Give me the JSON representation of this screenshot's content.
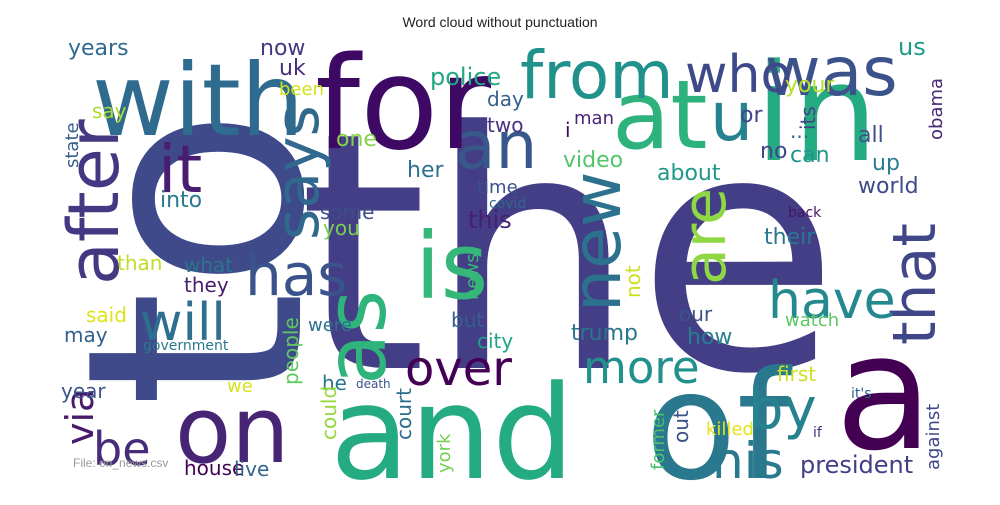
{
  "chart_data": {
    "type": "wordcloud",
    "title": "Word cloud without punctuation",
    "words": [
      {
        "text": "the",
        "color": "#433e85"
      },
      {
        "text": "to",
        "color": "#3e4a89"
      },
      {
        "text": "in",
        "color": "#25ab82"
      },
      {
        "text": "of",
        "color": "#2a788e"
      },
      {
        "text": "a",
        "color": "#440154"
      },
      {
        "text": "and",
        "color": "#25ab82"
      },
      {
        "text": "for",
        "color": "#3d0965"
      },
      {
        "text": "with",
        "color": "#2f6b8e"
      },
      {
        "text": "on",
        "color": "#482475"
      },
      {
        "text": "at",
        "color": "#2db27d"
      },
      {
        "text": "is",
        "color": "#35b779"
      },
      {
        "text": "from",
        "color": "#21918c"
      },
      {
        "text": "was",
        "color": "#3b528b"
      },
      {
        "text": "as",
        "color": "#2fb47c"
      },
      {
        "text": "u",
        "color": "#26828e"
      },
      {
        "text": "who",
        "color": "#3e4989"
      },
      {
        "text": "new",
        "color": "#2c728e"
      },
      {
        "text": "after",
        "color": "#453781"
      },
      {
        "text": "says",
        "color": "#31688e"
      },
      {
        "text": "it",
        "color": "#481f70"
      },
      {
        "text": "an",
        "color": "#38588c"
      },
      {
        "text": "has",
        "color": "#3a538b"
      },
      {
        "text": "are",
        "color": "#8fd744"
      },
      {
        "text": "that",
        "color": "#3f4788"
      },
      {
        "text": "have",
        "color": "#23898e"
      },
      {
        "text": "by",
        "color": "#26828e"
      },
      {
        "text": "will",
        "color": "#2e6e8e"
      },
      {
        "text": "over",
        "color": "#440154"
      },
      {
        "text": "his",
        "color": "#2a788e"
      },
      {
        "text": "more",
        "color": "#21918c"
      },
      {
        "text": "be",
        "color": "#472c7a"
      },
      {
        "text": "via",
        "color": "#481a6c"
      },
      {
        "text": "president",
        "color": "#433e85"
      },
      {
        "text": "police",
        "color": "#22a785"
      },
      {
        "text": "us",
        "color": "#1e9b8a"
      },
      {
        "text": "obama",
        "color": "#482878"
      },
      {
        "text": "your",
        "color": "#b8de29"
      },
      {
        "text": "all",
        "color": "#3b528b"
      },
      {
        "text": "or",
        "color": "#404688"
      },
      {
        "text": "its",
        "color": "#414487"
      },
      {
        "text": "...",
        "color": "#31688e"
      },
      {
        "text": "can",
        "color": "#1f958b"
      },
      {
        "text": "up",
        "color": "#287d8e"
      },
      {
        "text": "world",
        "color": "#3e4a89"
      },
      {
        "text": "their",
        "color": "#2a778e"
      },
      {
        "text": "back",
        "color": "#481467"
      },
      {
        "text": "years",
        "color": "#306a8e"
      },
      {
        "text": "now",
        "color": "#453882"
      },
      {
        "text": "uk",
        "color": "#472d7b"
      },
      {
        "text": "been",
        "color": "#d2e21b"
      },
      {
        "text": "say",
        "color": "#aadc32"
      },
      {
        "text": "state",
        "color": "#365d8d"
      },
      {
        "text": "one",
        "color": "#84d44b"
      },
      {
        "text": "day",
        "color": "#355f8d"
      },
      {
        "text": "two",
        "color": "#46327e"
      },
      {
        "text": "man",
        "color": "#482677"
      },
      {
        "text": "i",
        "color": "#450559"
      },
      {
        "text": "no",
        "color": "#3f4889"
      },
      {
        "text": "her",
        "color": "#2d718e"
      },
      {
        "text": "video",
        "color": "#51c56a"
      },
      {
        "text": "about",
        "color": "#1f988b"
      },
      {
        "text": "time",
        "color": "#3b518b"
      },
      {
        "text": "covid",
        "color": "#31678e"
      },
      {
        "text": "into",
        "color": "#297a8e"
      },
      {
        "text": "this",
        "color": "#482071"
      },
      {
        "text": "some",
        "color": "#3d4d8a"
      },
      {
        "text": "you",
        "color": "#75d054"
      },
      {
        "text": "than",
        "color": "#bddf26"
      },
      {
        "text": "what",
        "color": "#2b748e"
      },
      {
        "text": "they",
        "color": "#481c6e"
      },
      {
        "text": "news",
        "color": "#38b977"
      },
      {
        "text": "not",
        "color": "#cae11f"
      },
      {
        "text": "said",
        "color": "#dde318"
      },
      {
        "text": "may",
        "color": "#34608d"
      },
      {
        "text": "government",
        "color": "#2a788e"
      },
      {
        "text": "people",
        "color": "#5ec962"
      },
      {
        "text": "were",
        "color": "#2c728e"
      },
      {
        "text": "but",
        "color": "#34608d"
      },
      {
        "text": "city",
        "color": "#20a386"
      },
      {
        "text": "trump",
        "color": "#2a768e"
      },
      {
        "text": "our",
        "color": "#3b528b"
      },
      {
        "text": "watch",
        "color": "#5cc863"
      },
      {
        "text": "how",
        "color": "#277e8e"
      },
      {
        "text": "first",
        "color": "#cde11d"
      },
      {
        "text": "it's",
        "color": "#33628d"
      },
      {
        "text": "against",
        "color": "#3f4788"
      },
      {
        "text": "year",
        "color": "#3a548c"
      },
      {
        "text": "we",
        "color": "#d8e219"
      },
      {
        "text": "he",
        "color": "#2a768e"
      },
      {
        "text": "death",
        "color": "#3b528b"
      },
      {
        "text": "could",
        "color": "#95d840"
      },
      {
        "text": "court",
        "color": "#2f6c8e"
      },
      {
        "text": "york",
        "color": "#75d054"
      },
      {
        "text": "former",
        "color": "#4ac16d"
      },
      {
        "text": "out",
        "color": "#3b518b"
      },
      {
        "text": "killed",
        "color": "#e5e419"
      },
      {
        "text": "if",
        "color": "#46337f"
      },
      {
        "text": "house",
        "color": "#440154"
      },
      {
        "text": "live",
        "color": "#32648e"
      }
    ]
  },
  "file_note": "File: on_news.csv"
}
